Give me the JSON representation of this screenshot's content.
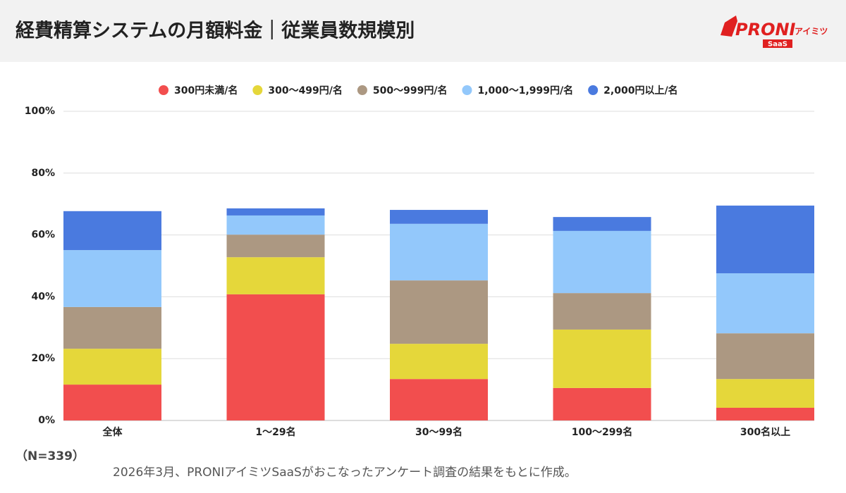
{
  "chart_data": {
    "type": "stacked_bar",
    "title": "経費精算システムの月額料金｜従業員数規模別",
    "categories": [
      "全体",
      "1〜29名",
      "30〜99名",
      "100〜299名",
      "300名以上"
    ],
    "series": [
      {
        "name": "300円未満/名",
        "color": "#f24e4e",
        "values": [
          11.6,
          40.8,
          13.4,
          10.5,
          4.1
        ]
      },
      {
        "name": "300〜499円/名",
        "color": "#e5d73a",
        "values": [
          11.6,
          12.0,
          11.4,
          18.9,
          9.3
        ]
      },
      {
        "name": "500〜999円/名",
        "color": "#ac9882",
        "values": [
          13.5,
          7.3,
          20.5,
          11.8,
          14.8
        ]
      },
      {
        "name": "1,000〜1,999円/名",
        "color": "#93c8fb",
        "values": [
          18.4,
          6.2,
          18.3,
          20.1,
          19.4
        ]
      },
      {
        "name": "2,000円以上/名",
        "color": "#4a7adf",
        "values": [
          12.6,
          2.3,
          4.5,
          4.5,
          21.9
        ]
      }
    ],
    "ylim": [
      0,
      100
    ],
    "yticks": [
      {
        "value": 0,
        "label": "0%"
      },
      {
        "value": 20,
        "label": "20%"
      },
      {
        "value": 40,
        "label": "40%"
      },
      {
        "value": 60,
        "label": "60%"
      },
      {
        "value": 80,
        "label": "80%"
      },
      {
        "value": 100,
        "label": "100%"
      }
    ],
    "grid": true,
    "legend": "top",
    "sample": "（N=339）",
    "note": "2026年3月、PRONIアイミツSaaSがおこなったアンケート調査の結果をもとに作成。"
  },
  "logo": {
    "brand": "PRONI",
    "sub": "アイミツ",
    "badge": "SaaS"
  }
}
